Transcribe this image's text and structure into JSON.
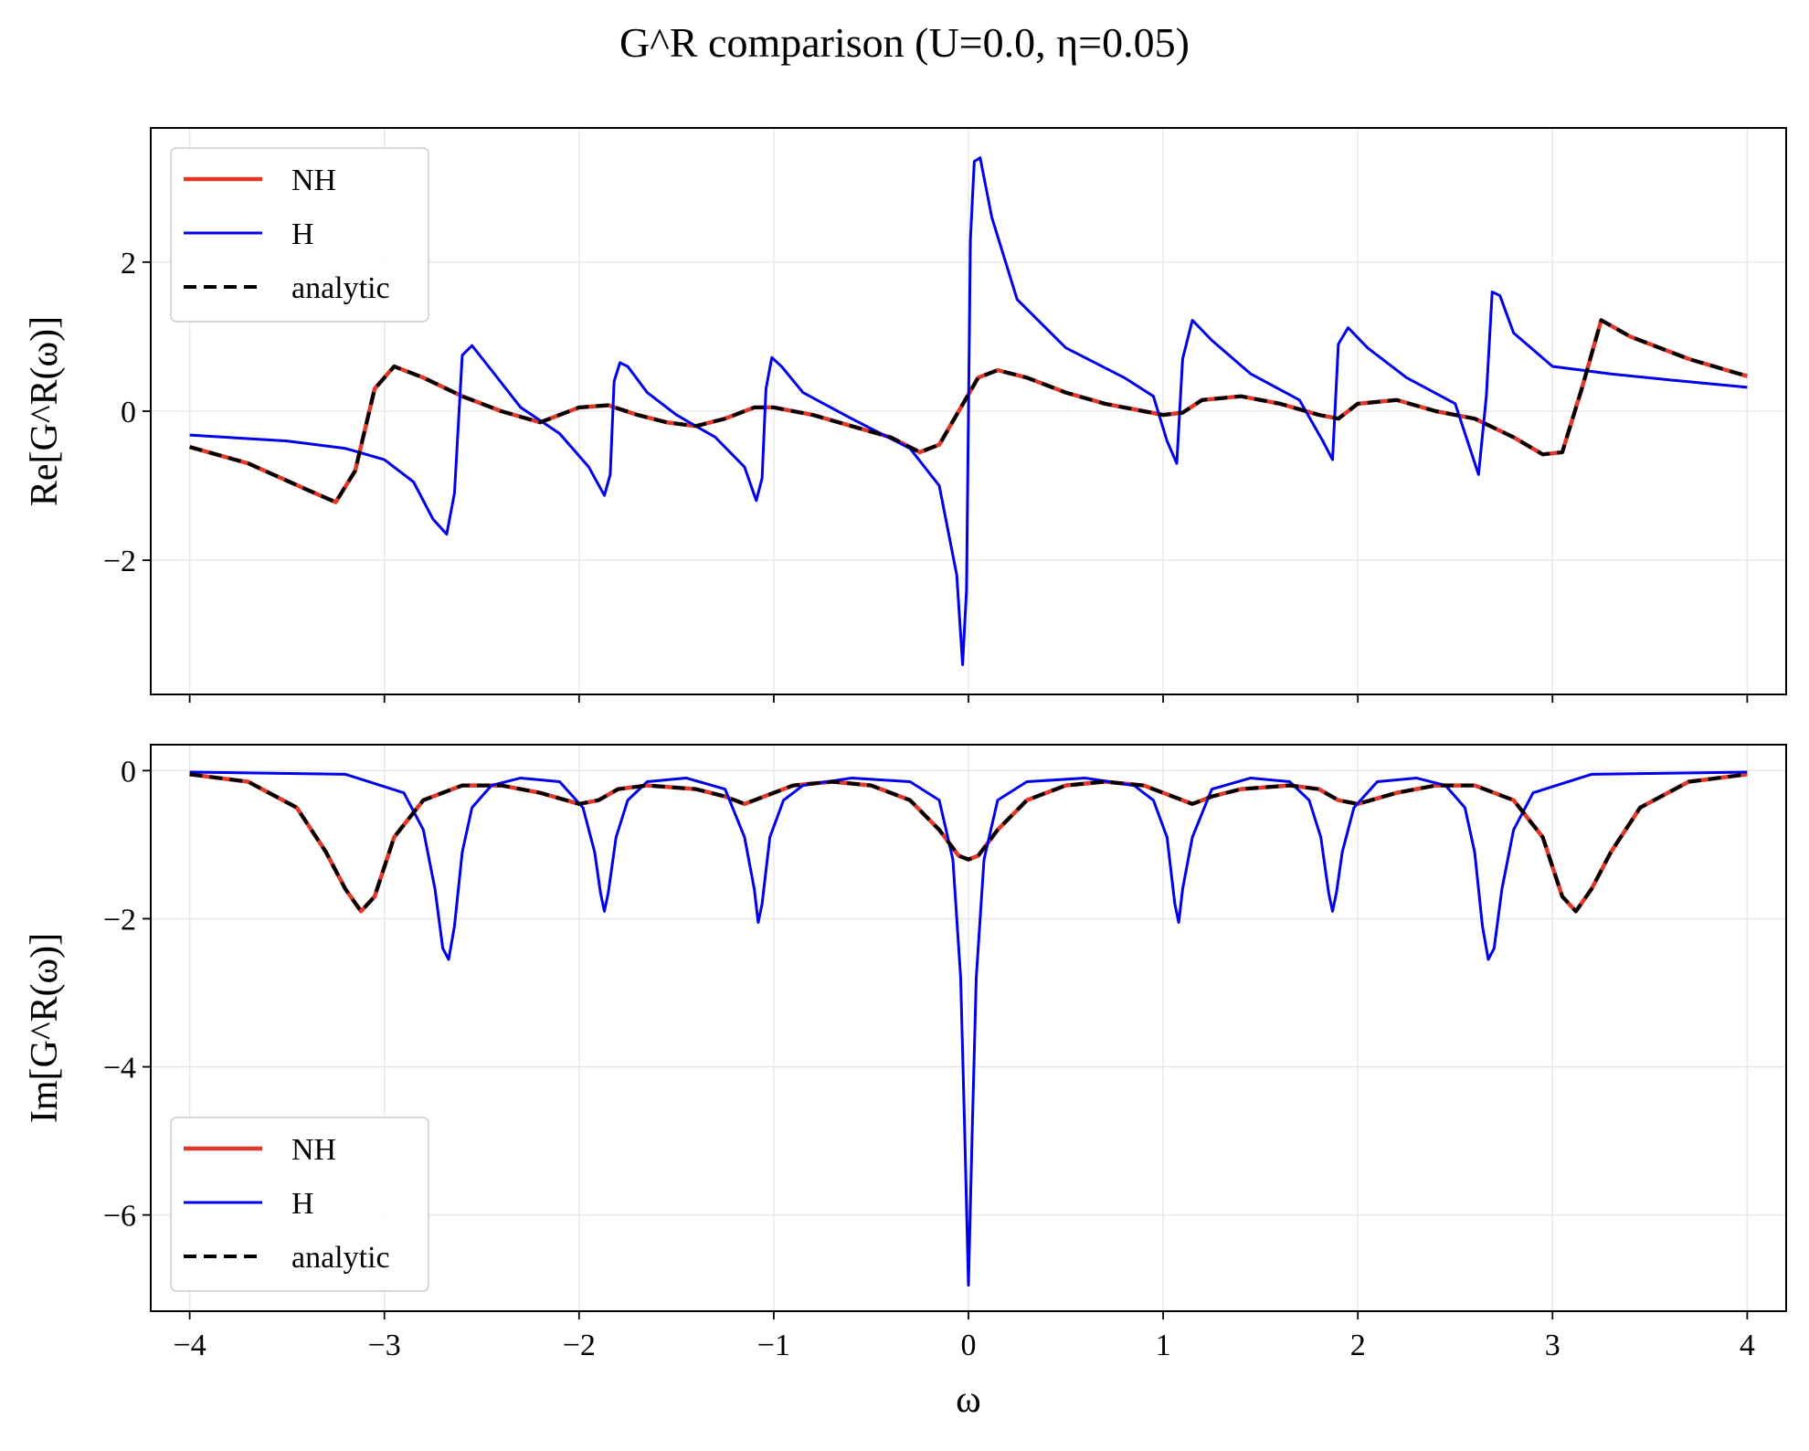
{
  "title": "G^R comparison (U=0.0, η=0.05)",
  "colors": {
    "NH": "#e0392b",
    "H": "#0000ee",
    "analytic": "#000000",
    "grid": "#e6e6e6"
  },
  "chart_data": [
    {
      "type": "line",
      "panel": "top",
      "xlabel": "",
      "ylabel": "Re[G^R(ω)]",
      "xlim": [
        -4.2,
        4.2
      ],
      "ylim": [
        -3.8,
        3.8
      ],
      "xticks": [
        -4,
        -3,
        -2,
        -1,
        0,
        1,
        2,
        3,
        4
      ],
      "xtick_labels_shown": false,
      "yticks": [
        -2,
        0,
        2
      ],
      "ytick_labels": [
        "−2",
        "0",
        "2"
      ],
      "grid": true,
      "legend": {
        "position": "upper-left",
        "entries": [
          "NH",
          "H",
          "analytic"
        ]
      },
      "series": [
        {
          "name": "NH",
          "style": "solid",
          "color": "#e0392b",
          "x": [
            -4.0,
            -3.7,
            -3.4,
            -3.25,
            -3.15,
            -3.05,
            -2.95,
            -2.8,
            -2.6,
            -2.4,
            -2.2,
            -2.0,
            -1.85,
            -1.7,
            -1.55,
            -1.4,
            -1.25,
            -1.1,
            -1.0,
            -0.8,
            -0.6,
            -0.4,
            -0.25,
            -0.15,
            -0.05,
            0.05,
            0.15,
            0.3,
            0.5,
            0.7,
            0.9,
            1.0,
            1.1,
            1.2,
            1.4,
            1.6,
            1.8,
            1.9,
            2.0,
            2.2,
            2.4,
            2.6,
            2.8,
            2.95,
            3.05,
            3.15,
            3.25,
            3.4,
            3.7,
            4.0
          ],
          "y": [
            -0.48,
            -0.7,
            -1.05,
            -1.22,
            -0.8,
            0.3,
            0.6,
            0.45,
            0.2,
            0.0,
            -0.15,
            0.05,
            0.08,
            -0.05,
            -0.15,
            -0.2,
            -0.1,
            0.05,
            0.05,
            -0.05,
            -0.2,
            -0.35,
            -0.55,
            -0.45,
            0.0,
            0.45,
            0.55,
            0.45,
            0.25,
            0.1,
            0.0,
            -0.05,
            -0.02,
            0.15,
            0.2,
            0.1,
            -0.05,
            -0.1,
            0.1,
            0.15,
            0.0,
            -0.1,
            -0.35,
            -0.58,
            -0.55,
            0.3,
            1.22,
            1.0,
            0.7,
            0.47
          ]
        },
        {
          "name": "H",
          "style": "solid",
          "color": "#0000ee",
          "x": [
            -4.0,
            -3.5,
            -3.2,
            -3.0,
            -2.85,
            -2.75,
            -2.68,
            -2.64,
            -2.6,
            -2.55,
            -2.45,
            -2.3,
            -2.1,
            -1.95,
            -1.87,
            -1.84,
            -1.82,
            -1.79,
            -1.75,
            -1.65,
            -1.5,
            -1.3,
            -1.15,
            -1.09,
            -1.06,
            -1.04,
            -1.01,
            -0.96,
            -0.85,
            -0.6,
            -0.3,
            -0.15,
            -0.06,
            -0.03,
            -0.01,
            0.01,
            0.03,
            0.06,
            0.12,
            0.25,
            0.5,
            0.8,
            0.95,
            1.02,
            1.07,
            1.1,
            1.15,
            1.25,
            1.45,
            1.7,
            1.82,
            1.87,
            1.9,
            1.95,
            2.05,
            2.25,
            2.5,
            2.62,
            2.66,
            2.69,
            2.73,
            2.8,
            3.0,
            3.3,
            3.6,
            4.0
          ],
          "y": [
            -0.32,
            -0.4,
            -0.5,
            -0.65,
            -0.95,
            -1.45,
            -1.65,
            -1.1,
            0.75,
            0.88,
            0.55,
            0.05,
            -0.3,
            -0.75,
            -1.13,
            -0.85,
            0.4,
            0.65,
            0.6,
            0.25,
            -0.05,
            -0.35,
            -0.75,
            -1.2,
            -0.9,
            0.3,
            0.72,
            0.6,
            0.25,
            -0.1,
            -0.5,
            -1.0,
            -2.2,
            -3.4,
            -2.4,
            2.3,
            3.35,
            3.4,
            2.6,
            1.5,
            0.85,
            0.45,
            0.2,
            -0.4,
            -0.7,
            0.7,
            1.22,
            0.95,
            0.5,
            0.15,
            -0.4,
            -0.65,
            0.9,
            1.12,
            0.85,
            0.45,
            0.1,
            -0.85,
            0.2,
            1.6,
            1.55,
            1.05,
            0.6,
            0.5,
            0.42,
            0.32
          ]
        },
        {
          "name": "analytic",
          "style": "dashed",
          "color": "#000000",
          "x": [
            -4.0,
            -3.7,
            -3.4,
            -3.25,
            -3.15,
            -3.05,
            -2.95,
            -2.8,
            -2.6,
            -2.4,
            -2.2,
            -2.0,
            -1.85,
            -1.7,
            -1.55,
            -1.4,
            -1.25,
            -1.1,
            -1.0,
            -0.8,
            -0.6,
            -0.4,
            -0.25,
            -0.15,
            -0.05,
            0.05,
            0.15,
            0.3,
            0.5,
            0.7,
            0.9,
            1.0,
            1.1,
            1.2,
            1.4,
            1.6,
            1.8,
            1.9,
            2.0,
            2.2,
            2.4,
            2.6,
            2.8,
            2.95,
            3.05,
            3.15,
            3.25,
            3.4,
            3.7,
            4.0
          ],
          "y": [
            -0.48,
            -0.7,
            -1.05,
            -1.22,
            -0.8,
            0.3,
            0.6,
            0.45,
            0.2,
            0.0,
            -0.15,
            0.05,
            0.08,
            -0.05,
            -0.15,
            -0.2,
            -0.1,
            0.05,
            0.05,
            -0.05,
            -0.2,
            -0.35,
            -0.55,
            -0.45,
            0.0,
            0.45,
            0.55,
            0.45,
            0.25,
            0.1,
            0.0,
            -0.05,
            -0.02,
            0.15,
            0.2,
            0.1,
            -0.05,
            -0.1,
            0.1,
            0.15,
            0.0,
            -0.1,
            -0.35,
            -0.58,
            -0.55,
            0.3,
            1.22,
            1.0,
            0.7,
            0.47
          ]
        }
      ]
    },
    {
      "type": "line",
      "panel": "bottom",
      "xlabel": "ω",
      "ylabel": "Im[G^R(ω)]",
      "xlim": [
        -4.2,
        4.2
      ],
      "ylim": [
        -7.3,
        0.35
      ],
      "xticks": [
        -4,
        -3,
        -2,
        -1,
        0,
        1,
        2,
        3,
        4
      ],
      "xtick_labels": [
        "−4",
        "−3",
        "−2",
        "−1",
        "0",
        "1",
        "2",
        "3",
        "4"
      ],
      "yticks": [
        -6,
        -4,
        -2,
        0
      ],
      "ytick_labels": [
        "−6",
        "−4",
        "−2",
        "0"
      ],
      "grid": true,
      "legend": {
        "position": "lower-left",
        "entries": [
          "NH",
          "H",
          "analytic"
        ]
      },
      "series": [
        {
          "name": "NH",
          "style": "solid",
          "color": "#e0392b",
          "x": [
            -4.0,
            -3.7,
            -3.45,
            -3.3,
            -3.2,
            -3.12,
            -3.05,
            -2.95,
            -2.8,
            -2.6,
            -2.4,
            -2.2,
            -2.0,
            -1.9,
            -1.8,
            -1.65,
            -1.4,
            -1.25,
            -1.15,
            -1.05,
            -0.9,
            -0.7,
            -0.5,
            -0.3,
            -0.15,
            -0.05,
            0.0,
            0.05,
            0.15,
            0.3,
            0.5,
            0.7,
            0.9,
            1.05,
            1.15,
            1.25,
            1.4,
            1.65,
            1.8,
            1.9,
            2.0,
            2.2,
            2.4,
            2.6,
            2.8,
            2.95,
            3.05,
            3.12,
            3.2,
            3.3,
            3.45,
            3.7,
            4.0
          ],
          "y": [
            -0.05,
            -0.15,
            -0.5,
            -1.1,
            -1.6,
            -1.9,
            -1.7,
            -0.9,
            -0.4,
            -0.2,
            -0.2,
            -0.3,
            -0.45,
            -0.4,
            -0.25,
            -0.2,
            -0.25,
            -0.35,
            -0.45,
            -0.35,
            -0.2,
            -0.15,
            -0.2,
            -0.4,
            -0.8,
            -1.15,
            -1.2,
            -1.15,
            -0.8,
            -0.4,
            -0.2,
            -0.15,
            -0.2,
            -0.35,
            -0.45,
            -0.35,
            -0.25,
            -0.2,
            -0.25,
            -0.4,
            -0.45,
            -0.3,
            -0.2,
            -0.2,
            -0.4,
            -0.9,
            -1.7,
            -1.9,
            -1.6,
            -1.1,
            -0.5,
            -0.15,
            -0.05
          ]
        },
        {
          "name": "H",
          "style": "solid",
          "color": "#0000ee",
          "x": [
            -4.0,
            -3.2,
            -2.9,
            -2.8,
            -2.74,
            -2.7,
            -2.67,
            -2.64,
            -2.6,
            -2.55,
            -2.45,
            -2.3,
            -2.1,
            -1.98,
            -1.92,
            -1.89,
            -1.87,
            -1.85,
            -1.81,
            -1.75,
            -1.65,
            -1.45,
            -1.25,
            -1.15,
            -1.1,
            -1.08,
            -1.06,
            -1.02,
            -0.95,
            -0.85,
            -0.6,
            -0.3,
            -0.15,
            -0.08,
            -0.04,
            -0.02,
            0.0,
            0.02,
            0.04,
            0.08,
            0.15,
            0.3,
            0.6,
            0.85,
            0.95,
            1.02,
            1.06,
            1.08,
            1.1,
            1.15,
            1.25,
            1.45,
            1.65,
            1.75,
            1.81,
            1.85,
            1.87,
            1.89,
            1.92,
            1.98,
            2.1,
            2.3,
            2.45,
            2.55,
            2.6,
            2.64,
            2.67,
            2.7,
            2.74,
            2.8,
            2.9,
            3.2,
            4.0
          ],
          "y": [
            -0.02,
            -0.05,
            -0.3,
            -0.8,
            -1.6,
            -2.4,
            -2.55,
            -2.1,
            -1.1,
            -0.5,
            -0.2,
            -0.1,
            -0.15,
            -0.5,
            -1.1,
            -1.65,
            -1.9,
            -1.65,
            -0.9,
            -0.4,
            -0.15,
            -0.1,
            -0.25,
            -0.9,
            -1.6,
            -2.05,
            -1.8,
            -0.9,
            -0.4,
            -0.2,
            -0.1,
            -0.15,
            -0.4,
            -1.2,
            -2.8,
            -4.8,
            -6.95,
            -4.8,
            -2.8,
            -1.2,
            -0.4,
            -0.15,
            -0.1,
            -0.2,
            -0.4,
            -0.9,
            -1.8,
            -2.05,
            -1.6,
            -0.9,
            -0.25,
            -0.1,
            -0.15,
            -0.4,
            -0.9,
            -1.65,
            -1.9,
            -1.65,
            -1.1,
            -0.5,
            -0.15,
            -0.1,
            -0.2,
            -0.5,
            -1.1,
            -2.1,
            -2.55,
            -2.4,
            -1.6,
            -0.8,
            -0.3,
            -0.05,
            -0.02
          ]
        },
        {
          "name": "analytic",
          "style": "dashed",
          "color": "#000000",
          "x": [
            -4.0,
            -3.7,
            -3.45,
            -3.3,
            -3.2,
            -3.12,
            -3.05,
            -2.95,
            -2.8,
            -2.6,
            -2.4,
            -2.2,
            -2.0,
            -1.9,
            -1.8,
            -1.65,
            -1.4,
            -1.25,
            -1.15,
            -1.05,
            -0.9,
            -0.7,
            -0.5,
            -0.3,
            -0.15,
            -0.05,
            0.0,
            0.05,
            0.15,
            0.3,
            0.5,
            0.7,
            0.9,
            1.05,
            1.15,
            1.25,
            1.4,
            1.65,
            1.8,
            1.9,
            2.0,
            2.2,
            2.4,
            2.6,
            2.8,
            2.95,
            3.05,
            3.12,
            3.2,
            3.3,
            3.45,
            3.7,
            4.0
          ],
          "y": [
            -0.05,
            -0.15,
            -0.5,
            -1.1,
            -1.6,
            -1.9,
            -1.7,
            -0.9,
            -0.4,
            -0.2,
            -0.2,
            -0.3,
            -0.45,
            -0.4,
            -0.25,
            -0.2,
            -0.25,
            -0.35,
            -0.45,
            -0.35,
            -0.2,
            -0.15,
            -0.2,
            -0.4,
            -0.8,
            -1.15,
            -1.2,
            -1.15,
            -0.8,
            -0.4,
            -0.2,
            -0.15,
            -0.2,
            -0.35,
            -0.45,
            -0.35,
            -0.25,
            -0.2,
            -0.25,
            -0.4,
            -0.45,
            -0.3,
            -0.2,
            -0.2,
            -0.4,
            -0.9,
            -1.7,
            -1.9,
            -1.6,
            -1.1,
            -0.5,
            -0.15,
            -0.05
          ]
        }
      ]
    }
  ]
}
